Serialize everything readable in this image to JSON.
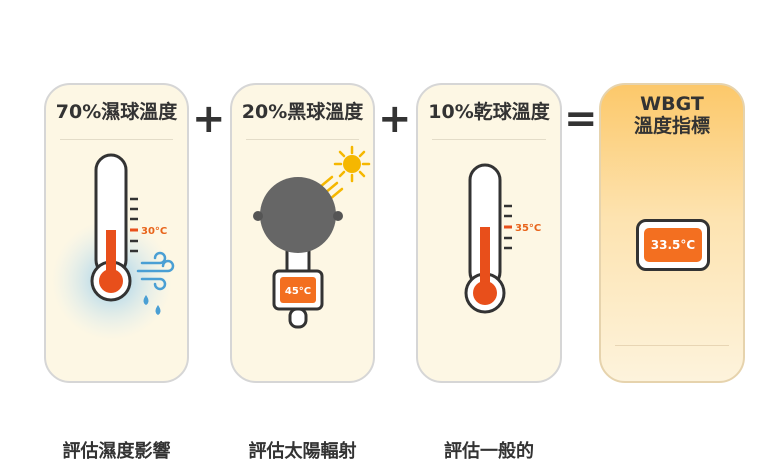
{
  "operators": {
    "plus1": "+",
    "plus2": "+",
    "equals": "="
  },
  "cards": [
    {
      "title": "70%濕球溫度",
      "temp": "30°C",
      "caption": "評估濕度影響"
    },
    {
      "title": "20%黑球溫度",
      "temp": "45°C",
      "caption": "評估太陽輻射"
    },
    {
      "title": "10%乾球溫度",
      "temp": "35°C",
      "caption": "評估一般的"
    }
  ],
  "result": {
    "title_line1": "WBGT",
    "title_line2": "溫度指標",
    "value": "33.5°C"
  },
  "colors": {
    "accent": "#f36f20",
    "mercury": "#e84f1b",
    "card_bg": "#fdf7e4",
    "result_top": "#fcc86a"
  }
}
